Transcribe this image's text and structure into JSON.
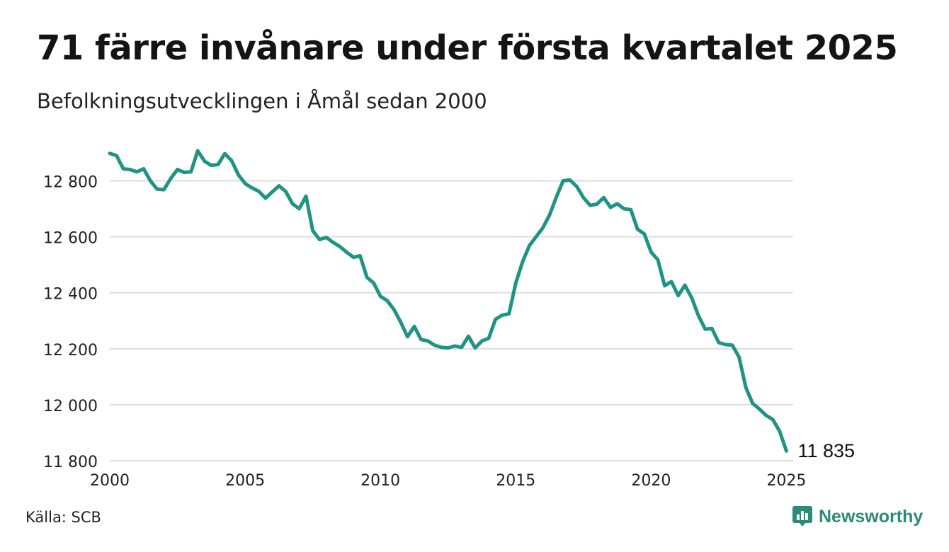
{
  "title": "71 färre invånare under första kvartalet 2025",
  "subtitle": "Befolkningsutvecklingen i Åmål sedan 2000",
  "source": "Källa: SCB",
  "brand": {
    "name": "Newsworthy",
    "icon": "newsworthy-logo-icon",
    "color": "#2c8a7a"
  },
  "chart_data": {
    "type": "line",
    "title": "71 färre invånare under första kvartalet 2025",
    "subtitle": "Befolkningsutvecklingen i Åmål sedan 2000",
    "xlabel": "",
    "ylabel": "",
    "xlim": [
      2000,
      2025.25
    ],
    "ylim": [
      11790,
      12920
    ],
    "x_ticks": [
      2000,
      2005,
      2010,
      2015,
      2020,
      2025
    ],
    "x_tick_labels": [
      "2000",
      "2005",
      "2010",
      "2015",
      "2020",
      "2025"
    ],
    "y_ticks": [
      11800,
      12000,
      12200,
      12400,
      12600,
      12800
    ],
    "y_tick_labels": [
      "11 800",
      "12 000",
      "12 200",
      "12 400",
      "12 600",
      "12 800"
    ],
    "grid": "horizontal",
    "line_color": "#1f9384",
    "end_label": "11 835",
    "series": [
      {
        "x_start": 2000,
        "x_step": 0.25,
        "values": [
          12898,
          12890,
          12843,
          12840,
          12832,
          12843,
          12800,
          12770,
          12768,
          12808,
          12840,
          12830,
          12832,
          12907,
          12870,
          12855,
          12858,
          12897,
          12872,
          12822,
          12790,
          12775,
          12763,
          12738,
          12760,
          12782,
          12762,
          12718,
          12700,
          12745,
          12622,
          12590,
          12598,
          12580,
          12565,
          12545,
          12527,
          12532,
          12455,
          12435,
          12387,
          12372,
          12340,
          12295,
          12243,
          12280,
          12233,
          12228,
          12213,
          12205,
          12203,
          12210,
          12205,
          12245,
          12203,
          12228,
          12237,
          12305,
          12320,
          12325,
          12435,
          12510,
          12568,
          12600,
          12632,
          12678,
          12742,
          12800,
          12803,
          12780,
          12740,
          12712,
          12717,
          12740,
          12705,
          12718,
          12700,
          12697,
          12627,
          12610,
          12545,
          12518,
          12425,
          12440,
          12390,
          12427,
          12382,
          12318,
          12270,
          12272,
          12222,
          12215,
          12213,
          12170,
          12062,
          12005,
          11985,
          11962,
          11947,
          11905,
          11835
        ]
      }
    ]
  }
}
